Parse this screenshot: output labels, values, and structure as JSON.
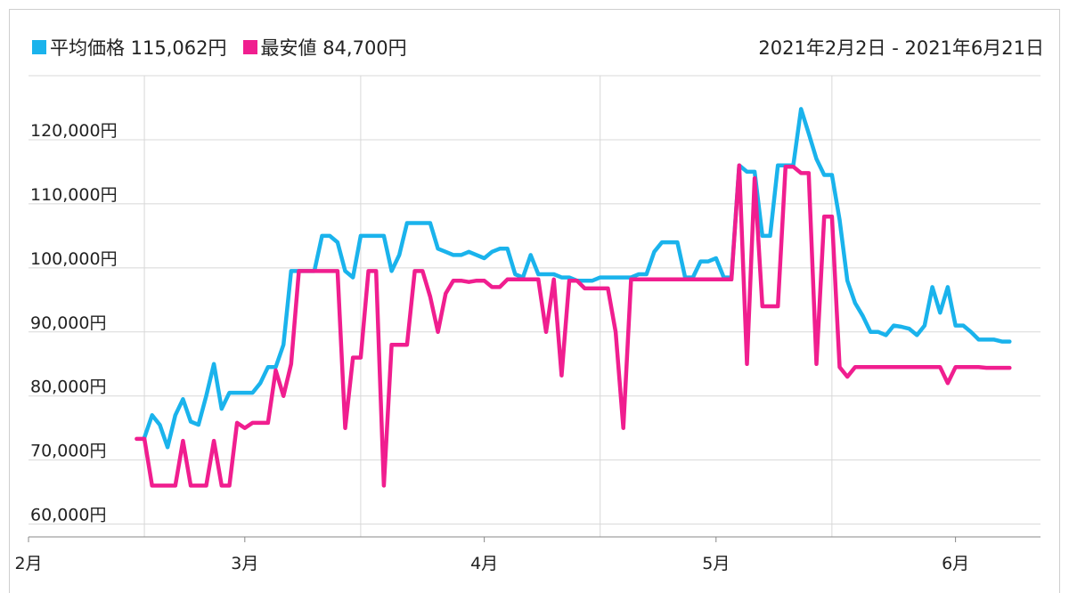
{
  "legend": {
    "avg_label": "平均価格 115,062円",
    "min_label": "最安値 84,700円"
  },
  "date_range": "2021年2月2日 - 2021年6月21日",
  "colors": {
    "avg": "#1ab3ec",
    "min": "#f01e8f",
    "grid": "#d8d8d8",
    "axis": "#888888"
  },
  "chart_data": {
    "type": "line",
    "title": "",
    "xlabel": "",
    "ylabel": "",
    "x_range": [
      "2021-02-01",
      "2021-06-12"
    ],
    "ylim": [
      58000,
      130000
    ],
    "y_ticks": [
      60000,
      70000,
      80000,
      90000,
      100000,
      110000,
      120000
    ],
    "y_tick_labels": [
      "60,000円",
      "70,000円",
      "80,000円",
      "90,000円",
      "100,000円",
      "110,000円",
      "120,000円"
    ],
    "x_ticks": [
      "2021-02-01",
      "2021-03-01",
      "2021-04-01",
      "2021-05-01",
      "2021-06-01"
    ],
    "x_tick_labels": [
      "2月",
      "3月",
      "4月",
      "5月",
      "6月"
    ],
    "grid": true,
    "legend_position": "top-left",
    "series": [
      {
        "name": "平均価格",
        "points": [
          [
            "2021-02-16",
            73500
          ],
          [
            "2021-02-17",
            77000
          ],
          [
            "2021-02-18",
            75500
          ],
          [
            "2021-02-19",
            72000
          ],
          [
            "2021-02-20",
            77000
          ],
          [
            "2021-02-21",
            79500
          ],
          [
            "2021-02-22",
            76000
          ],
          [
            "2021-02-23",
            75500
          ],
          [
            "2021-02-24",
            80000
          ],
          [
            "2021-02-25",
            85000
          ],
          [
            "2021-02-26",
            78000
          ],
          [
            "2021-02-27",
            80500
          ],
          [
            "2021-03-02",
            80500
          ],
          [
            "2021-03-03",
            82000
          ],
          [
            "2021-03-04",
            84500
          ],
          [
            "2021-03-05",
            84500
          ],
          [
            "2021-03-06",
            88000
          ],
          [
            "2021-03-07",
            99500
          ],
          [
            "2021-03-09",
            99500
          ],
          [
            "2021-03-10",
            99500
          ],
          [
            "2021-03-11",
            105000
          ],
          [
            "2021-03-12",
            105000
          ],
          [
            "2021-03-13",
            104000
          ],
          [
            "2021-03-14",
            99500
          ],
          [
            "2021-03-15",
            98500
          ],
          [
            "2021-03-16",
            105000
          ],
          [
            "2021-03-19",
            105000
          ],
          [
            "2021-03-20",
            99500
          ],
          [
            "2021-03-21",
            102000
          ],
          [
            "2021-03-22",
            107000
          ],
          [
            "2021-03-25",
            107000
          ],
          [
            "2021-03-26",
            103000
          ],
          [
            "2021-03-27",
            102500
          ],
          [
            "2021-03-28",
            102000
          ],
          [
            "2021-03-29",
            102000
          ],
          [
            "2021-03-30",
            102500
          ],
          [
            "2021-03-31",
            102000
          ],
          [
            "2021-04-01",
            101500
          ],
          [
            "2021-04-02",
            102500
          ],
          [
            "2021-04-03",
            103000
          ],
          [
            "2021-04-04",
            103000
          ],
          [
            "2021-04-05",
            99000
          ],
          [
            "2021-04-06",
            98500
          ],
          [
            "2021-04-07",
            102000
          ],
          [
            "2021-04-08",
            99000
          ],
          [
            "2021-04-10",
            99000
          ],
          [
            "2021-04-11",
            98500
          ],
          [
            "2021-04-12",
            98500
          ],
          [
            "2021-04-13",
            98000
          ],
          [
            "2021-04-14",
            98000
          ],
          [
            "2021-04-15",
            98000
          ],
          [
            "2021-04-16",
            98500
          ],
          [
            "2021-04-20",
            98500
          ],
          [
            "2021-04-21",
            99000
          ],
          [
            "2021-04-22",
            99000
          ],
          [
            "2021-04-23",
            102500
          ],
          [
            "2021-04-24",
            104000
          ],
          [
            "2021-04-26",
            104000
          ],
          [
            "2021-04-27",
            98500
          ],
          [
            "2021-04-28",
            98500
          ],
          [
            "2021-04-29",
            101000
          ],
          [
            "2021-04-30",
            101000
          ],
          [
            "2021-05-01",
            101500
          ],
          [
            "2021-05-02",
            98500
          ],
          [
            "2021-05-03",
            98500
          ],
          [
            "2021-05-04",
            116000
          ],
          [
            "2021-05-05",
            115000
          ],
          [
            "2021-05-06",
            115000
          ],
          [
            "2021-05-07",
            105000
          ],
          [
            "2021-05-08",
            105000
          ],
          [
            "2021-05-09",
            116000
          ],
          [
            "2021-05-10",
            116000
          ],
          [
            "2021-05-11",
            116000
          ],
          [
            "2021-05-12",
            124800
          ],
          [
            "2021-05-13",
            121000
          ],
          [
            "2021-05-14",
            117000
          ],
          [
            "2021-05-15",
            114500
          ],
          [
            "2021-05-16",
            114500
          ],
          [
            "2021-05-17",
            107500
          ],
          [
            "2021-05-18",
            98000
          ],
          [
            "2021-05-19",
            94500
          ],
          [
            "2021-05-20",
            92500
          ],
          [
            "2021-05-21",
            90000
          ],
          [
            "2021-05-22",
            90000
          ],
          [
            "2021-05-23",
            89500
          ],
          [
            "2021-05-24",
            91000
          ],
          [
            "2021-05-25",
            90800
          ],
          [
            "2021-05-26",
            90500
          ],
          [
            "2021-05-27",
            89500
          ],
          [
            "2021-05-28",
            91000
          ],
          [
            "2021-05-29",
            97000
          ],
          [
            "2021-05-30",
            93000
          ],
          [
            "2021-05-31",
            97000
          ],
          [
            "2021-06-01",
            91000
          ],
          [
            "2021-06-02",
            91000
          ],
          [
            "2021-06-03",
            90000
          ],
          [
            "2021-06-04",
            88800
          ],
          [
            "2021-06-05",
            88800
          ],
          [
            "2021-06-06",
            88800
          ],
          [
            "2021-06-07",
            88500
          ],
          [
            "2021-06-08",
            88500
          ]
        ]
      },
      {
        "name": "最安値",
        "points": [
          [
            "2021-02-15",
            73300
          ],
          [
            "2021-02-16",
            73300
          ],
          [
            "2021-02-17",
            66000
          ],
          [
            "2021-02-18",
            66000
          ],
          [
            "2021-02-19",
            66000
          ],
          [
            "2021-02-20",
            66000
          ],
          [
            "2021-02-21",
            73000
          ],
          [
            "2021-02-22",
            66000
          ],
          [
            "2021-02-23",
            66000
          ],
          [
            "2021-02-24",
            66000
          ],
          [
            "2021-02-25",
            73000
          ],
          [
            "2021-02-26",
            66000
          ],
          [
            "2021-02-27",
            66000
          ],
          [
            "2021-02-28",
            75800
          ],
          [
            "2021-03-01",
            75000
          ],
          [
            "2021-03-02",
            75800
          ],
          [
            "2021-03-03",
            75800
          ],
          [
            "2021-03-04",
            75800
          ],
          [
            "2021-03-05",
            84000
          ],
          [
            "2021-03-06",
            80000
          ],
          [
            "2021-03-07",
            85000
          ],
          [
            "2021-03-08",
            99500
          ],
          [
            "2021-03-13",
            99500
          ],
          [
            "2021-03-14",
            75000
          ],
          [
            "2021-03-15",
            86000
          ],
          [
            "2021-03-16",
            86000
          ],
          [
            "2021-03-17",
            99500
          ],
          [
            "2021-03-18",
            99500
          ],
          [
            "2021-03-19",
            66000
          ],
          [
            "2021-03-20",
            88000
          ],
          [
            "2021-03-22",
            88000
          ],
          [
            "2021-03-23",
            99500
          ],
          [
            "2021-03-24",
            99500
          ],
          [
            "2021-03-25",
            95500
          ],
          [
            "2021-03-26",
            90000
          ],
          [
            "2021-03-27",
            96000
          ],
          [
            "2021-03-28",
            98000
          ],
          [
            "2021-03-29",
            98000
          ],
          [
            "2021-03-30",
            97800
          ],
          [
            "2021-03-31",
            98000
          ],
          [
            "2021-04-01",
            98000
          ],
          [
            "2021-04-02",
            97000
          ],
          [
            "2021-04-03",
            97000
          ],
          [
            "2021-04-04",
            98200
          ],
          [
            "2021-04-08",
            98200
          ],
          [
            "2021-04-09",
            90000
          ],
          [
            "2021-04-10",
            98200
          ],
          [
            "2021-04-11",
            83200
          ],
          [
            "2021-04-12",
            98000
          ],
          [
            "2021-04-13",
            98000
          ],
          [
            "2021-04-14",
            96800
          ],
          [
            "2021-04-17",
            96800
          ],
          [
            "2021-04-18",
            90000
          ],
          [
            "2021-04-19",
            75000
          ],
          [
            "2021-04-20",
            98200
          ],
          [
            "2021-05-03",
            98200
          ],
          [
            "2021-05-04",
            116000
          ],
          [
            "2021-05-05",
            85000
          ],
          [
            "2021-05-06",
            114000
          ],
          [
            "2021-05-07",
            94000
          ],
          [
            "2021-05-09",
            94000
          ],
          [
            "2021-05-10",
            115800
          ],
          [
            "2021-05-11",
            115800
          ],
          [
            "2021-05-12",
            114800
          ],
          [
            "2021-05-13",
            114800
          ],
          [
            "2021-05-14",
            85000
          ],
          [
            "2021-05-15",
            108000
          ],
          [
            "2021-05-16",
            108000
          ],
          [
            "2021-05-17",
            84500
          ],
          [
            "2021-05-18",
            83000
          ],
          [
            "2021-05-19",
            84500
          ],
          [
            "2021-05-30",
            84500
          ],
          [
            "2021-05-31",
            82000
          ],
          [
            "2021-06-01",
            84500
          ],
          [
            "2021-06-04",
            84500
          ],
          [
            "2021-06-05",
            84400
          ],
          [
            "2021-06-08",
            84400
          ]
        ]
      }
    ]
  }
}
